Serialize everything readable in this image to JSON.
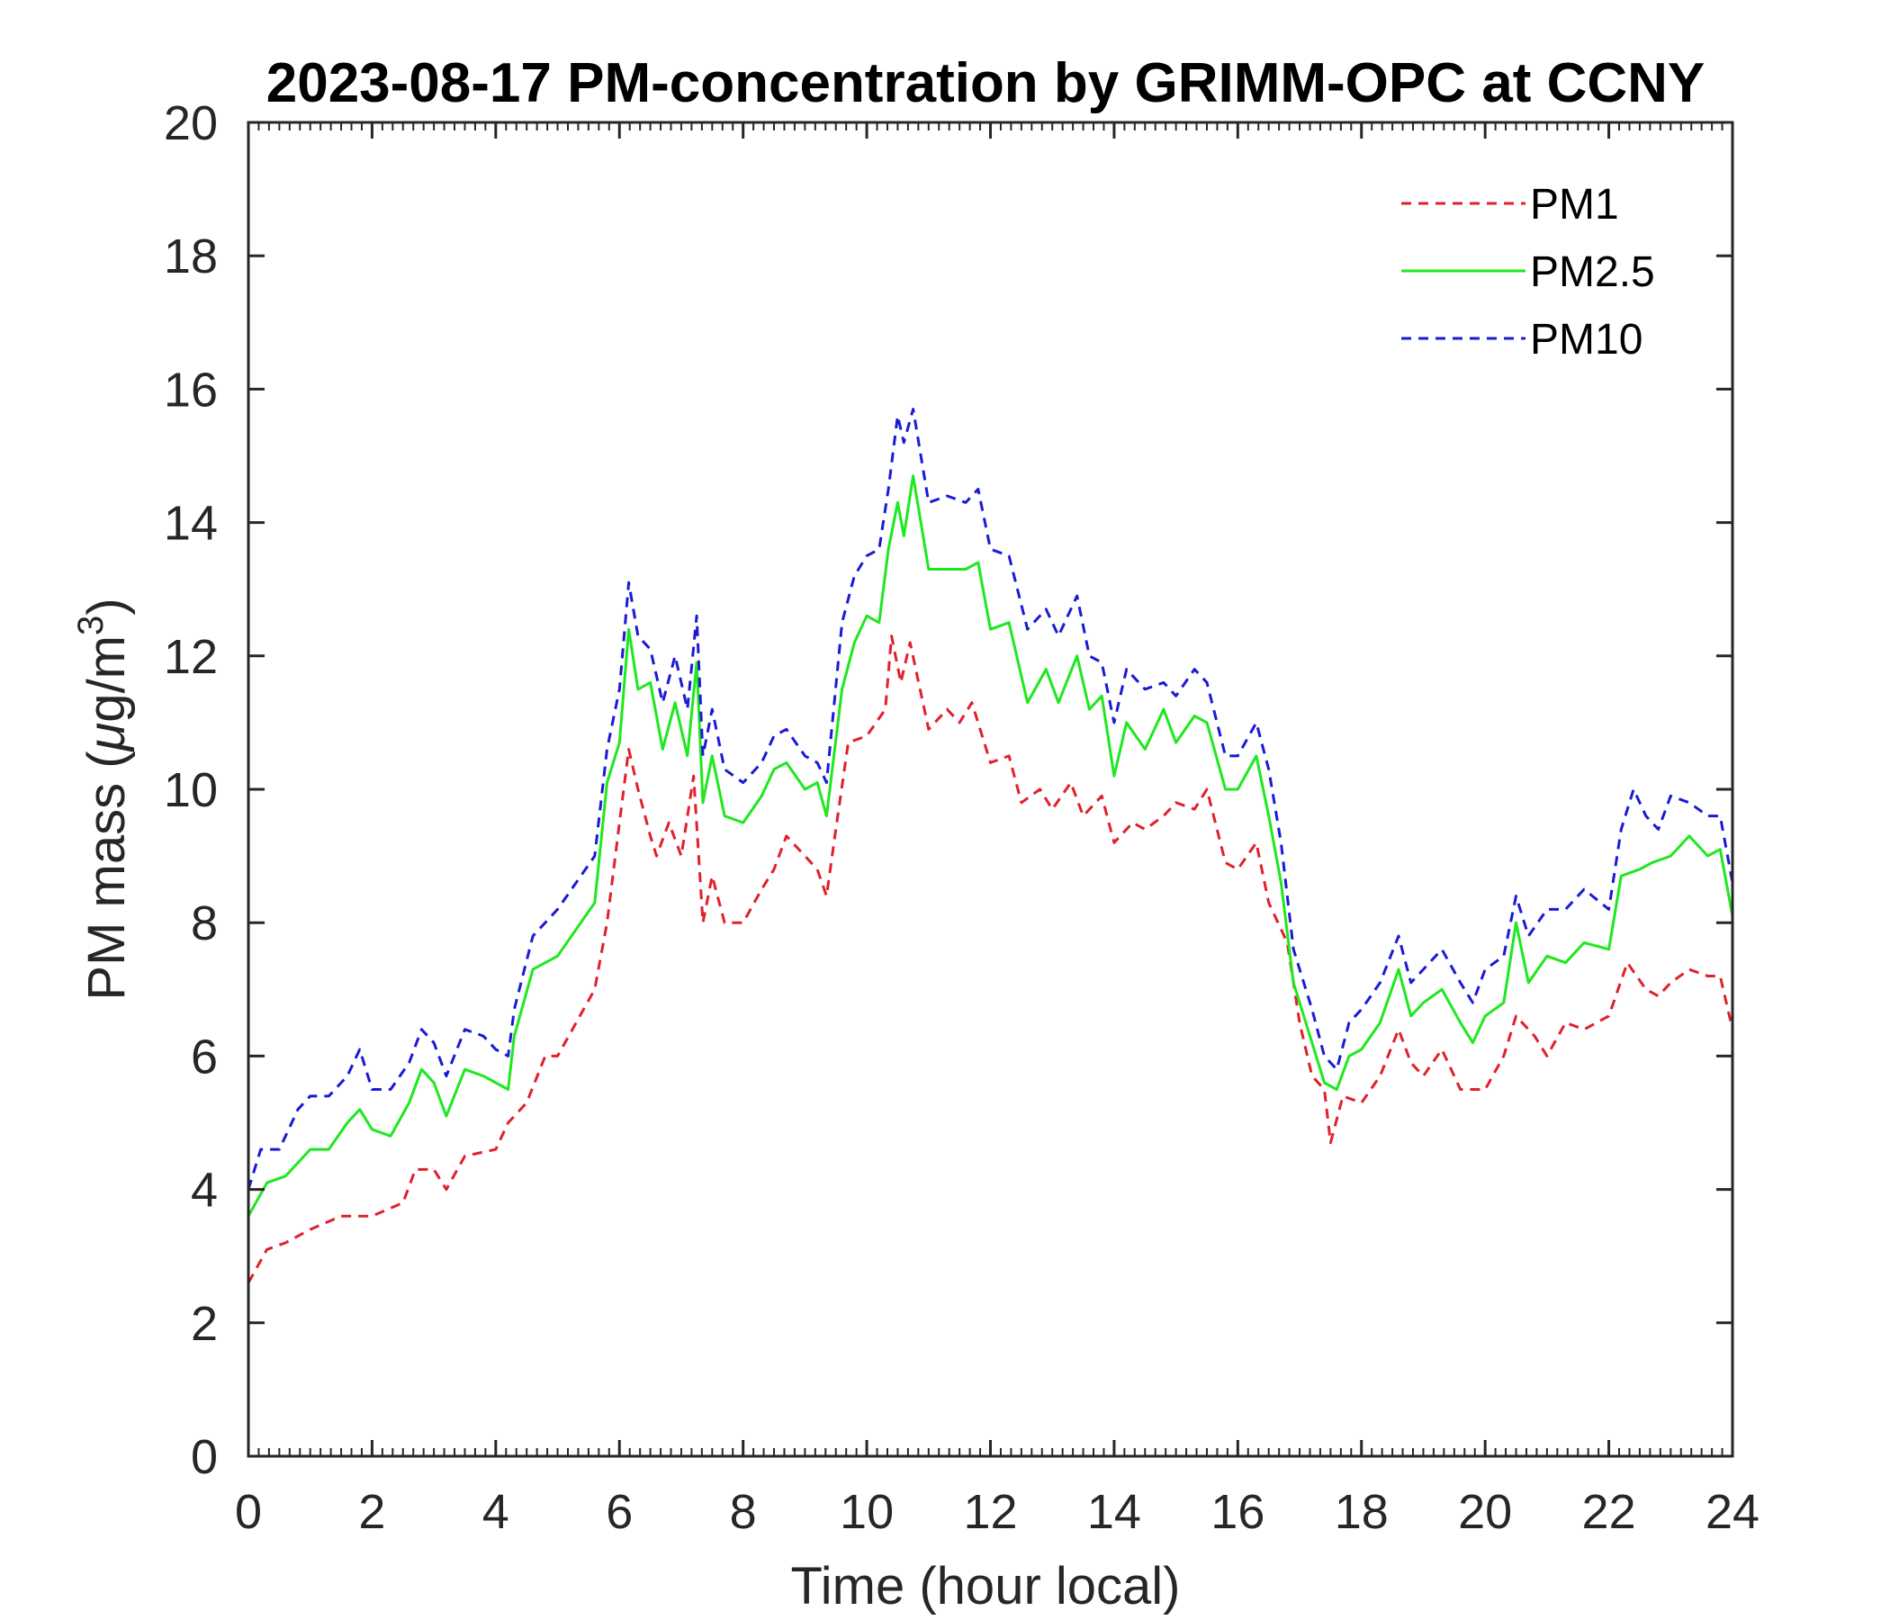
{
  "chart_data": {
    "type": "line",
    "title": "2023-08-17 PM-concentration by GRIMM-OPC at CCNY",
    "xlabel": "Time (hour local)",
    "ylabel": {
      "prefix": "PM mass (",
      "mu": "μ",
      "unit": "g/m",
      "sup": "3",
      "suffix": ")"
    },
    "xlim": [
      0,
      24
    ],
    "ylim": [
      0,
      20
    ],
    "xticks": [
      "0",
      "2",
      "4",
      "6",
      "8",
      "10",
      "12",
      "14",
      "16",
      "18",
      "20",
      "22",
      "24"
    ],
    "yticks": [
      "0",
      "2",
      "4",
      "6",
      "8",
      "10",
      "12",
      "14",
      "16",
      "18",
      "20"
    ],
    "legend_position": "top-right",
    "series": [
      {
        "name": "PM1",
        "color": "#e0202a",
        "style": "dashed",
        "points": [
          [
            0,
            2.6
          ],
          [
            0.3,
            3.1
          ],
          [
            0.6,
            3.2
          ],
          [
            1.0,
            3.4
          ],
          [
            1.5,
            3.6
          ],
          [
            2.0,
            3.6
          ],
          [
            2.5,
            3.8
          ],
          [
            2.7,
            4.3
          ],
          [
            3.0,
            4.3
          ],
          [
            3.2,
            4.0
          ],
          [
            3.5,
            4.5
          ],
          [
            4.0,
            4.6
          ],
          [
            4.2,
            5.0
          ],
          [
            4.5,
            5.3
          ],
          [
            4.8,
            6.0
          ],
          [
            5.0,
            6.0
          ],
          [
            5.3,
            6.5
          ],
          [
            5.6,
            7.0
          ],
          [
            5.8,
            8.0
          ],
          [
            6.0,
            9.5
          ],
          [
            6.15,
            10.6
          ],
          [
            6.3,
            10.0
          ],
          [
            6.5,
            9.3
          ],
          [
            6.6,
            9.0
          ],
          [
            6.8,
            9.5
          ],
          [
            7.0,
            9.0
          ],
          [
            7.2,
            10.2
          ],
          [
            7.35,
            8.0
          ],
          [
            7.5,
            8.7
          ],
          [
            7.7,
            8.0
          ],
          [
            8.0,
            8.0
          ],
          [
            8.3,
            8.5
          ],
          [
            8.5,
            8.8
          ],
          [
            8.7,
            9.3
          ],
          [
            9.0,
            9.0
          ],
          [
            9.2,
            8.8
          ],
          [
            9.35,
            8.4
          ],
          [
            9.5,
            9.4
          ],
          [
            9.7,
            10.7
          ],
          [
            10.0,
            10.8
          ],
          [
            10.3,
            11.2
          ],
          [
            10.4,
            12.3
          ],
          [
            10.55,
            11.6
          ],
          [
            10.7,
            12.2
          ],
          [
            11.0,
            10.9
          ],
          [
            11.3,
            11.2
          ],
          [
            11.5,
            11.0
          ],
          [
            11.7,
            11.3
          ],
          [
            12.0,
            10.4
          ],
          [
            12.3,
            10.5
          ],
          [
            12.5,
            9.8
          ],
          [
            12.8,
            10.0
          ],
          [
            13.0,
            9.7
          ],
          [
            13.3,
            10.1
          ],
          [
            13.5,
            9.6
          ],
          [
            13.8,
            9.9
          ],
          [
            14.0,
            9.2
          ],
          [
            14.3,
            9.5
          ],
          [
            14.5,
            9.4
          ],
          [
            14.8,
            9.6
          ],
          [
            15.0,
            9.8
          ],
          [
            15.3,
            9.7
          ],
          [
            15.5,
            10.0
          ],
          [
            15.8,
            8.9
          ],
          [
            16.0,
            8.8
          ],
          [
            16.3,
            9.2
          ],
          [
            16.5,
            8.3
          ],
          [
            16.8,
            7.7
          ],
          [
            17.0,
            6.5
          ],
          [
            17.2,
            5.7
          ],
          [
            17.4,
            5.5
          ],
          [
            17.5,
            4.7
          ],
          [
            17.7,
            5.4
          ],
          [
            18.0,
            5.3
          ],
          [
            18.3,
            5.7
          ],
          [
            18.6,
            6.4
          ],
          [
            18.8,
            5.9
          ],
          [
            19.0,
            5.7
          ],
          [
            19.3,
            6.1
          ],
          [
            19.6,
            5.5
          ],
          [
            20.0,
            5.5
          ],
          [
            20.3,
            6.0
          ],
          [
            20.5,
            6.6
          ],
          [
            20.8,
            6.3
          ],
          [
            21.0,
            6.0
          ],
          [
            21.3,
            6.5
          ],
          [
            21.6,
            6.4
          ],
          [
            22.0,
            6.6
          ],
          [
            22.3,
            7.4
          ],
          [
            22.6,
            7.0
          ],
          [
            22.8,
            6.9
          ],
          [
            23.0,
            7.1
          ],
          [
            23.3,
            7.3
          ],
          [
            23.6,
            7.2
          ],
          [
            23.8,
            7.2
          ],
          [
            24.0,
            6.4
          ]
        ]
      },
      {
        "name": "PM2.5",
        "color": "#1ee81e",
        "style": "solid",
        "points": [
          [
            0,
            3.6
          ],
          [
            0.3,
            4.1
          ],
          [
            0.6,
            4.2
          ],
          [
            1.0,
            4.6
          ],
          [
            1.3,
            4.6
          ],
          [
            1.6,
            5.0
          ],
          [
            1.8,
            5.2
          ],
          [
            2.0,
            4.9
          ],
          [
            2.3,
            4.8
          ],
          [
            2.6,
            5.3
          ],
          [
            2.8,
            5.8
          ],
          [
            3.0,
            5.6
          ],
          [
            3.2,
            5.1
          ],
          [
            3.5,
            5.8
          ],
          [
            3.8,
            5.7
          ],
          [
            4.0,
            5.6
          ],
          [
            4.2,
            5.5
          ],
          [
            4.3,
            6.3
          ],
          [
            4.6,
            7.3
          ],
          [
            5.0,
            7.5
          ],
          [
            5.3,
            7.9
          ],
          [
            5.6,
            8.3
          ],
          [
            5.8,
            10.1
          ],
          [
            6.0,
            10.7
          ],
          [
            6.15,
            12.4
          ],
          [
            6.3,
            11.5
          ],
          [
            6.5,
            11.6
          ],
          [
            6.7,
            10.6
          ],
          [
            6.9,
            11.3
          ],
          [
            7.1,
            10.5
          ],
          [
            7.25,
            11.9
          ],
          [
            7.35,
            9.8
          ],
          [
            7.5,
            10.5
          ],
          [
            7.7,
            9.6
          ],
          [
            8.0,
            9.5
          ],
          [
            8.3,
            9.9
          ],
          [
            8.5,
            10.3
          ],
          [
            8.7,
            10.4
          ],
          [
            9.0,
            10.0
          ],
          [
            9.2,
            10.1
          ],
          [
            9.35,
            9.6
          ],
          [
            9.6,
            11.5
          ],
          [
            9.8,
            12.2
          ],
          [
            10.0,
            12.6
          ],
          [
            10.2,
            12.5
          ],
          [
            10.35,
            13.6
          ],
          [
            10.5,
            14.3
          ],
          [
            10.6,
            13.8
          ],
          [
            10.75,
            14.7
          ],
          [
            11.0,
            13.3
          ],
          [
            11.3,
            13.3
          ],
          [
            11.6,
            13.3
          ],
          [
            11.8,
            13.4
          ],
          [
            12.0,
            12.4
          ],
          [
            12.3,
            12.5
          ],
          [
            12.6,
            11.3
          ],
          [
            12.9,
            11.8
          ],
          [
            13.1,
            11.3
          ],
          [
            13.4,
            12.0
          ],
          [
            13.6,
            11.2
          ],
          [
            13.8,
            11.4
          ],
          [
            14.0,
            10.2
          ],
          [
            14.2,
            11.0
          ],
          [
            14.5,
            10.6
          ],
          [
            14.8,
            11.2
          ],
          [
            15.0,
            10.7
          ],
          [
            15.3,
            11.1
          ],
          [
            15.5,
            11.0
          ],
          [
            15.8,
            10.0
          ],
          [
            16.0,
            10.0
          ],
          [
            16.3,
            10.5
          ],
          [
            16.5,
            9.6
          ],
          [
            16.7,
            8.6
          ],
          [
            16.9,
            7.1
          ],
          [
            17.2,
            6.2
          ],
          [
            17.4,
            5.6
          ],
          [
            17.6,
            5.5
          ],
          [
            17.8,
            6.0
          ],
          [
            18.0,
            6.1
          ],
          [
            18.3,
            6.5
          ],
          [
            18.6,
            7.3
          ],
          [
            18.8,
            6.6
          ],
          [
            19.0,
            6.8
          ],
          [
            19.3,
            7.0
          ],
          [
            19.6,
            6.5
          ],
          [
            19.8,
            6.2
          ],
          [
            20.0,
            6.6
          ],
          [
            20.3,
            6.8
          ],
          [
            20.5,
            8.0
          ],
          [
            20.7,
            7.1
          ],
          [
            21.0,
            7.5
          ],
          [
            21.3,
            7.4
          ],
          [
            21.6,
            7.7
          ],
          [
            22.0,
            7.6
          ],
          [
            22.2,
            8.7
          ],
          [
            22.5,
            8.8
          ],
          [
            22.7,
            8.9
          ],
          [
            23.0,
            9.0
          ],
          [
            23.3,
            9.3
          ],
          [
            23.6,
            9.0
          ],
          [
            23.8,
            9.1
          ],
          [
            24.0,
            8.1
          ]
        ]
      },
      {
        "name": "PM10",
        "color": "#1a1ad6",
        "style": "dashed",
        "points": [
          [
            0,
            4.0
          ],
          [
            0.2,
            4.6
          ],
          [
            0.5,
            4.6
          ],
          [
            0.8,
            5.2
          ],
          [
            1.0,
            5.4
          ],
          [
            1.3,
            5.4
          ],
          [
            1.6,
            5.7
          ],
          [
            1.8,
            6.1
          ],
          [
            2.0,
            5.5
          ],
          [
            2.3,
            5.5
          ],
          [
            2.6,
            5.9
          ],
          [
            2.8,
            6.4
          ],
          [
            3.0,
            6.2
          ],
          [
            3.2,
            5.7
          ],
          [
            3.5,
            6.4
          ],
          [
            3.8,
            6.3
          ],
          [
            4.0,
            6.1
          ],
          [
            4.2,
            6.0
          ],
          [
            4.3,
            6.7
          ],
          [
            4.6,
            7.8
          ],
          [
            5.0,
            8.2
          ],
          [
            5.3,
            8.6
          ],
          [
            5.6,
            9.0
          ],
          [
            5.8,
            10.6
          ],
          [
            6.0,
            11.5
          ],
          [
            6.15,
            13.1
          ],
          [
            6.3,
            12.3
          ],
          [
            6.5,
            12.1
          ],
          [
            6.7,
            11.3
          ],
          [
            6.9,
            12.0
          ],
          [
            7.1,
            11.2
          ],
          [
            7.25,
            12.6
          ],
          [
            7.35,
            10.5
          ],
          [
            7.5,
            11.2
          ],
          [
            7.7,
            10.3
          ],
          [
            8.0,
            10.1
          ],
          [
            8.3,
            10.4
          ],
          [
            8.5,
            10.8
          ],
          [
            8.7,
            10.9
          ],
          [
            9.0,
            10.5
          ],
          [
            9.2,
            10.4
          ],
          [
            9.35,
            10.1
          ],
          [
            9.6,
            12.5
          ],
          [
            9.8,
            13.2
          ],
          [
            10.0,
            13.5
          ],
          [
            10.2,
            13.6
          ],
          [
            10.35,
            14.5
          ],
          [
            10.5,
            15.6
          ],
          [
            10.6,
            15.2
          ],
          [
            10.75,
            15.7
          ],
          [
            11.0,
            14.3
          ],
          [
            11.3,
            14.4
          ],
          [
            11.6,
            14.3
          ],
          [
            11.8,
            14.5
          ],
          [
            12.0,
            13.6
          ],
          [
            12.3,
            13.5
          ],
          [
            12.6,
            12.4
          ],
          [
            12.9,
            12.7
          ],
          [
            13.1,
            12.3
          ],
          [
            13.4,
            12.9
          ],
          [
            13.6,
            12.0
          ],
          [
            13.8,
            11.9
          ],
          [
            14.0,
            11.0
          ],
          [
            14.2,
            11.8
          ],
          [
            14.5,
            11.5
          ],
          [
            14.8,
            11.6
          ],
          [
            15.0,
            11.4
          ],
          [
            15.3,
            11.8
          ],
          [
            15.5,
            11.6
          ],
          [
            15.8,
            10.5
          ],
          [
            16.0,
            10.5
          ],
          [
            16.3,
            11.0
          ],
          [
            16.5,
            10.3
          ],
          [
            16.7,
            9.2
          ],
          [
            16.9,
            7.6
          ],
          [
            17.2,
            6.7
          ],
          [
            17.4,
            6.0
          ],
          [
            17.6,
            5.8
          ],
          [
            17.8,
            6.5
          ],
          [
            18.0,
            6.7
          ],
          [
            18.3,
            7.1
          ],
          [
            18.6,
            7.8
          ],
          [
            18.8,
            7.1
          ],
          [
            19.0,
            7.3
          ],
          [
            19.3,
            7.6
          ],
          [
            19.6,
            7.1
          ],
          [
            19.8,
            6.8
          ],
          [
            20.0,
            7.3
          ],
          [
            20.3,
            7.5
          ],
          [
            20.5,
            8.4
          ],
          [
            20.7,
            7.8
          ],
          [
            21.0,
            8.2
          ],
          [
            21.3,
            8.2
          ],
          [
            21.6,
            8.5
          ],
          [
            22.0,
            8.2
          ],
          [
            22.2,
            9.4
          ],
          [
            22.4,
            10.0
          ],
          [
            22.6,
            9.6
          ],
          [
            22.8,
            9.4
          ],
          [
            23.0,
            9.9
          ],
          [
            23.3,
            9.8
          ],
          [
            23.6,
            9.6
          ],
          [
            23.8,
            9.6
          ],
          [
            24.0,
            8.6
          ]
        ]
      }
    ]
  }
}
